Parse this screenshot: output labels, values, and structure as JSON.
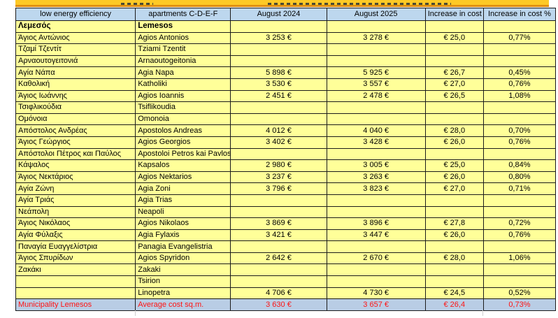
{
  "colors": {
    "cell_yellow": "#ffff99",
    "header_blue": "#bdd7ee",
    "footer_blue": "#b9cde5",
    "footer_red": "#ff1414",
    "strip_gold": "#fdc926",
    "strip_line_orange": "#df8e10",
    "border": "#1c1c1c"
  },
  "table": {
    "headers": [
      "low energy efficiency",
      "apartments C-D-E-F",
      "August 2024",
      "August 2025",
      "Increase in cost",
      "Increase in cost %"
    ],
    "group_row": {
      "gr": "Λεμεσός",
      "en": "Lemesos",
      "aug2024": "",
      "aug2025": "",
      "inc": "",
      "pct": ""
    },
    "rows": [
      {
        "gr": "Άγιος Αντώνιος",
        "en": "Agios Antonios",
        "aug2024": "3 253 €",
        "aug2025": "3 278 €",
        "inc": "€ 25,0",
        "pct": "0,77%"
      },
      {
        "gr": "Τζαμί Τζεντίτ",
        "en": "Tziami Tzentit",
        "aug2024": "",
        "aug2025": "",
        "inc": "",
        "pct": ""
      },
      {
        "gr": "Αρναουτογειτονιά",
        "en": "Arnaoutogeitonia",
        "aug2024": "",
        "aug2025": "",
        "inc": "",
        "pct": ""
      },
      {
        "gr": "Αγία Νάπα",
        "en": "Agia Napa",
        "aug2024": "5 898 €",
        "aug2025": "5 925 €",
        "inc": "€ 26,7",
        "pct": "0,45%"
      },
      {
        "gr": "Καθολική",
        "en": "Katholiki",
        "aug2024": "3 530 €",
        "aug2025": "3 557 €",
        "inc": "€ 27,0",
        "pct": "0,76%"
      },
      {
        "gr": "Άγιος Ιωάννης",
        "en": "Agios Ioannis",
        "aug2024": "2 451 €",
        "aug2025": "2 478 €",
        "inc": "€ 26,5",
        "pct": "1,08%"
      },
      {
        "gr": "Τσιφλικούδια",
        "en": "Tsiflikoudia",
        "aug2024": "",
        "aug2025": "",
        "inc": "",
        "pct": ""
      },
      {
        "gr": "Ομόνοια",
        "en": "Omonoia",
        "aug2024": "",
        "aug2025": "",
        "inc": "",
        "pct": ""
      },
      {
        "gr": "Απόστολος Ανδρέας",
        "en": "Apostolos Andreas",
        "aug2024": "4 012 €",
        "aug2025": "4 040 €",
        "inc": "€ 28,0",
        "pct": "0,70%"
      },
      {
        "gr": "Άγιος Γεώργιος",
        "en": "Agios Georgios",
        "aug2024": "3 402 €",
        "aug2025": "3 428 €",
        "inc": "€ 26,0",
        "pct": "0,76%"
      },
      {
        "gr": "Απόστολοι Πέτρος και Παύλος",
        "en": "Apostoloi Petros kai Pavlos",
        "aug2024": "",
        "aug2025": "",
        "inc": "",
        "pct": ""
      },
      {
        "gr": "Κάψαλος",
        "en": "Kapsalos",
        "aug2024": "2 980 €",
        "aug2025": "3 005 €",
        "inc": "€ 25,0",
        "pct": "0,84%"
      },
      {
        "gr": "Άγιος Νεκτάριος",
        "en": "Agios Nektarios",
        "aug2024": "3 237 €",
        "aug2025": "3 263 €",
        "inc": "€ 26,0",
        "pct": "0,80%"
      },
      {
        "gr": "Αγία Ζώνη",
        "en": "Agia Zoni",
        "aug2024": "3 796 €",
        "aug2025": "3 823 €",
        "inc": "€ 27,0",
        "pct": "0,71%"
      },
      {
        "gr": "Αγία Τριάς",
        "en": "Agia Trias",
        "aug2024": "",
        "aug2025": "",
        "inc": "",
        "pct": ""
      },
      {
        "gr": "Νεάπολη",
        "en": "Neapoli",
        "aug2024": "",
        "aug2025": "",
        "inc": "",
        "pct": ""
      },
      {
        "gr": "Άγιος Νικόλαος",
        "en": "Agios Nikolaos",
        "aug2024": "3 869 €",
        "aug2025": "3 896 €",
        "inc": "€ 27,8",
        "pct": "0,72%"
      },
      {
        "gr": "Αγία Φύλαξις",
        "en": "Agia Fylaxis",
        "aug2024": "3 421 €",
        "aug2025": "3 447 €",
        "inc": "€ 26,0",
        "pct": "0,76%"
      },
      {
        "gr": "Παναγία Ευαγγελίστρια",
        "en": "Panagia Evangelistria",
        "aug2024": "",
        "aug2025": "",
        "inc": "",
        "pct": ""
      },
      {
        "gr": "Άγιος Σπυρίδων",
        "en": "Agios Spyridon",
        "aug2024": "2 642 €",
        "aug2025": "2 670 €",
        "inc": "€ 28,0",
        "pct": "1,06%"
      },
      {
        "gr": "Ζακάκι",
        "en": "Zakaki",
        "aug2024": "",
        "aug2025": "",
        "inc": "",
        "pct": ""
      },
      {
        "gr": "",
        "en": "Tsirion",
        "aug2024": "",
        "aug2025": "",
        "inc": "",
        "pct": ""
      },
      {
        "gr": "",
        "en": "Linopetra",
        "aug2024": "4 706 €",
        "aug2025": "4 730 €",
        "inc": "€ 24,5",
        "pct": "0,52%"
      }
    ],
    "footer_row": {
      "gr": "Municipality Lemesos",
      "en": "Average cost sq.m.",
      "aug2024": "3 630 €",
      "aug2025": "3 657 €",
      "inc": "€ 26,4",
      "pct": "0,73%"
    }
  }
}
